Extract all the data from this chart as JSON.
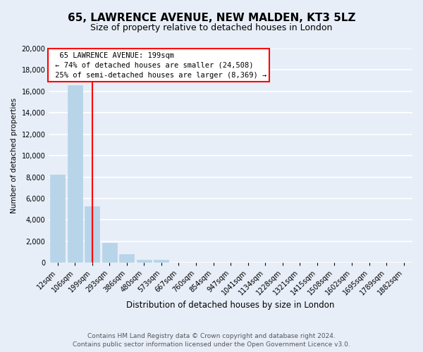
{
  "title": "65, LAWRENCE AVENUE, NEW MALDEN, KT3 5LZ",
  "subtitle": "Size of property relative to detached houses in London",
  "xlabel": "Distribution of detached houses by size in London",
  "ylabel": "Number of detached properties",
  "bar_labels": [
    "12sqm",
    "106sqm",
    "199sqm",
    "293sqm",
    "386sqm",
    "480sqm",
    "573sqm",
    "667sqm",
    "760sqm",
    "854sqm",
    "947sqm",
    "1041sqm",
    "1134sqm",
    "1228sqm",
    "1321sqm",
    "1415sqm",
    "1508sqm",
    "1602sqm",
    "1695sqm",
    "1789sqm",
    "1882sqm"
  ],
  "bar_values": [
    8200,
    16600,
    5300,
    1850,
    800,
    280,
    280,
    0,
    0,
    0,
    0,
    0,
    0,
    0,
    0,
    0,
    0,
    0,
    0,
    0,
    0
  ],
  "bar_color": "#b8d4e8",
  "vline_x_index": 2,
  "vline_color": "red",
  "annotation_title": "65 LAWRENCE AVENUE: 199sqm",
  "annotation_line1": "← 74% of detached houses are smaller (24,508)",
  "annotation_line2": "25% of semi-detached houses are larger (8,369) →",
  "annotation_box_color": "white",
  "annotation_box_edge": "red",
  "ylim": [
    0,
    20000
  ],
  "yticks": [
    0,
    2000,
    4000,
    6000,
    8000,
    10000,
    12000,
    14000,
    16000,
    18000,
    20000
  ],
  "footer_line1": "Contains HM Land Registry data © Crown copyright and database right 2024.",
  "footer_line2": "Contains public sector information licensed under the Open Government Licence v3.0.",
  "bg_color": "#e8eef8",
  "grid_color": "white",
  "title_fontsize": 11,
  "subtitle_fontsize": 9,
  "tick_label_fontsize": 7,
  "footer_fontsize": 6.5
}
